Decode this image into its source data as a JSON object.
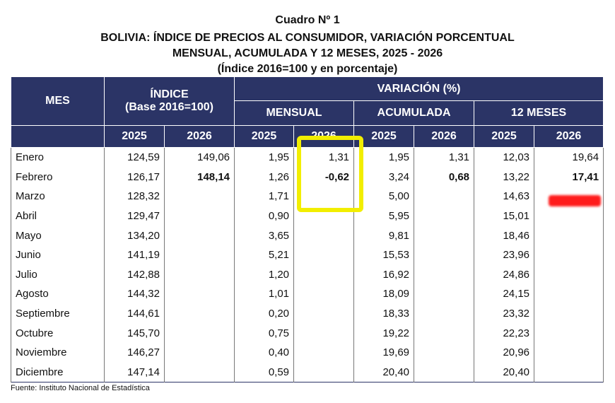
{
  "title": {
    "line1": "Cuadro Nº 1",
    "line2": "BOLIVIA: ÍNDICE DE PRECIOS AL CONSUMIDOR, VARIACIÓN PORCENTUAL",
    "line3": "MENSUAL, ACUMULADA Y 12 MESES, 2025 - 2026",
    "line4": "(Índice 2016=100 y en porcentaje)"
  },
  "table": {
    "header": {
      "mes": "MES",
      "indice": "ÍNDICE",
      "indice_base": "(Base 2016=100)",
      "variacion": "VARIACIÓN (%)",
      "mensual": "MENSUAL",
      "acumulada": "ACUMULADA",
      "doce_meses": "12 MESES",
      "years": [
        "2025",
        "2026",
        "2025",
        "2026",
        "2025",
        "2026",
        "2025",
        "2026"
      ]
    },
    "rows": [
      [
        "Enero",
        "124,59",
        "149,06",
        "1,95",
        "1,31",
        "1,95",
        "1,31",
        "12,03",
        "19,64"
      ],
      [
        "Febrero",
        "126,17",
        "148,14",
        "1,26",
        "-0,62",
        "3,24",
        "0,68",
        "13,22",
        "17,41"
      ],
      [
        "Marzo",
        "128,32",
        null,
        "1,71",
        null,
        "5,00",
        null,
        "14,63",
        null
      ],
      [
        "Abril",
        "129,47",
        null,
        "0,90",
        null,
        "5,95",
        null,
        "15,01",
        null
      ],
      [
        "Mayo",
        "134,20",
        null,
        "3,65",
        null,
        "9,81",
        null,
        "18,46",
        null
      ],
      [
        "Junio",
        "141,19",
        null,
        "5,21",
        null,
        "15,53",
        null,
        "23,96",
        null
      ],
      [
        "Julio",
        "142,88",
        null,
        "1,20",
        null,
        "16,92",
        null,
        "24,86",
        null
      ],
      [
        "Agosto",
        "144,32",
        null,
        "1,01",
        null,
        "18,09",
        null,
        "24,15",
        null
      ],
      [
        "Septiembre",
        "144,61",
        null,
        "0,20",
        null,
        "18,33",
        null,
        "23,32",
        null
      ],
      [
        "Octubre",
        "145,70",
        null,
        "0,75",
        null,
        "19,22",
        null,
        "22,23",
        null
      ],
      [
        "Noviembre",
        "146,27",
        null,
        "0,40",
        null,
        "19,69",
        null,
        "20,96",
        null
      ],
      [
        "Diciembre",
        "147,14",
        null,
        "0,59",
        null,
        "20,40",
        null,
        "20,40",
        null
      ]
    ]
  },
  "footer": "Fuente: Instituto Nacional de Estadística"
}
